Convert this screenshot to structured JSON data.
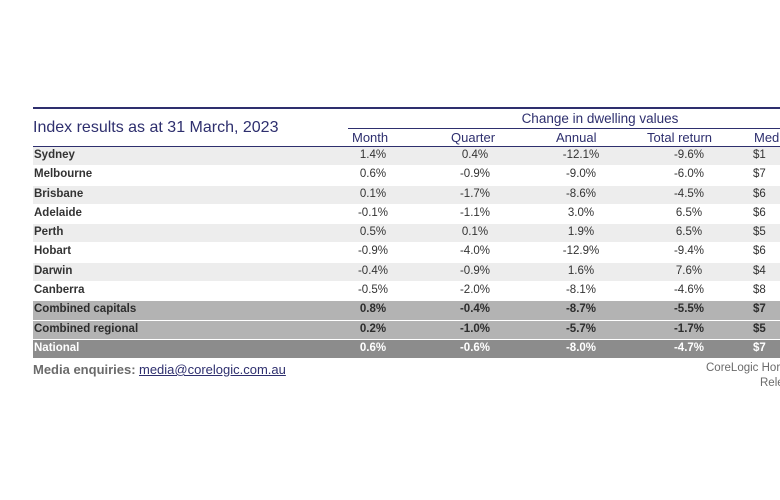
{
  "title": "Index results as at 31 March, 2023",
  "group_header": "Change in dwelling values",
  "columns": {
    "month": "Month",
    "quarter": "Quarter",
    "annual": "Annual",
    "total_return": "Total return",
    "median": "Med"
  },
  "rows": [
    {
      "name": "Sydney",
      "month": "1.4%",
      "quarter": "0.4%",
      "annual": "-12.1%",
      "total": "-9.6%",
      "median": "$1"
    },
    {
      "name": "Melbourne",
      "month": "0.6%",
      "quarter": "-0.9%",
      "annual": "-9.0%",
      "total": "-6.0%",
      "median": "$7"
    },
    {
      "name": "Brisbane",
      "month": "0.1%",
      "quarter": "-1.7%",
      "annual": "-8.6%",
      "total": "-4.5%",
      "median": "$6"
    },
    {
      "name": "Adelaide",
      "month": "-0.1%",
      "quarter": "-1.1%",
      "annual": "3.0%",
      "total": "6.5%",
      "median": "$6"
    },
    {
      "name": "Perth",
      "month": "0.5%",
      "quarter": "0.1%",
      "annual": "1.9%",
      "total": "6.5%",
      "median": "$5"
    },
    {
      "name": "Hobart",
      "month": "-0.9%",
      "quarter": "-4.0%",
      "annual": "-12.9%",
      "total": "-9.4%",
      "median": "$6"
    },
    {
      "name": "Darwin",
      "month": "-0.4%",
      "quarter": "-0.9%",
      "annual": "1.6%",
      "total": "7.6%",
      "median": "$4"
    },
    {
      "name": "Canberra",
      "month": "-0.5%",
      "quarter": "-2.0%",
      "annual": "-8.1%",
      "total": "-4.6%",
      "median": "$8"
    },
    {
      "name": "Combined capitals",
      "month": "0.8%",
      "quarter": "-0.4%",
      "annual": "-8.7%",
      "total": "-5.5%",
      "median": "$7"
    },
    {
      "name": "Combined regional",
      "month": "0.2%",
      "quarter": "-1.0%",
      "annual": "-5.7%",
      "total": "-1.7%",
      "median": "$5"
    },
    {
      "name": "National",
      "month": "0.6%",
      "quarter": "-0.6%",
      "annual": "-8.0%",
      "total": "-4.7%",
      "median": "$7"
    }
  ],
  "footer": {
    "label": "Media enquiries:",
    "email": "media@corelogic.com.au",
    "note_line1": "CoreLogic Hor",
    "note_line2": "Releas"
  }
}
